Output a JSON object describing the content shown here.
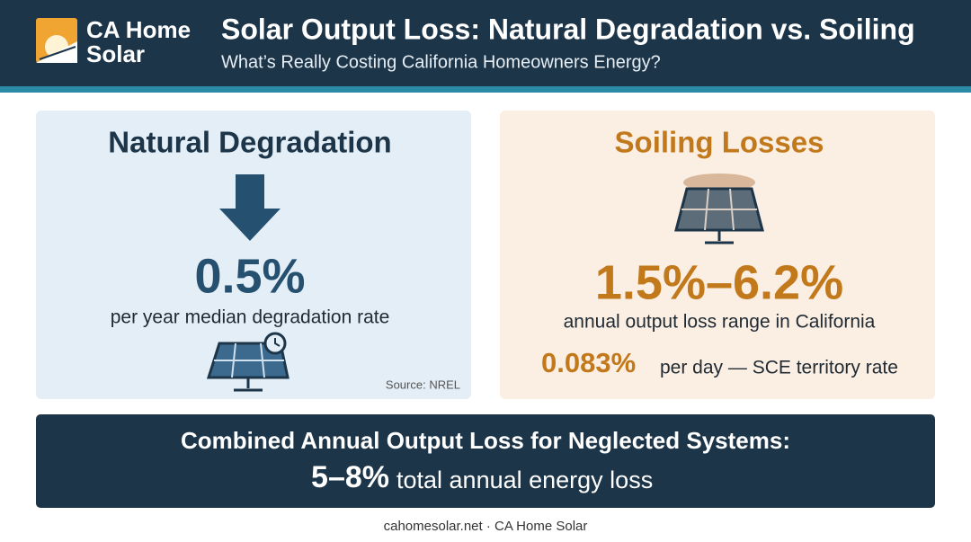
{
  "header": {
    "brand": [
      "CA Home",
      "Solar"
    ],
    "title": "Solar Output Loss: Natural Degradation vs. Soiling",
    "subtitle": "What’s Really Costing California Homeowners Energy?"
  },
  "degradation": {
    "title": "Natural Degradation",
    "stat": "0.5%",
    "description": "per year median degradation rate",
    "source": "Source: NREL"
  },
  "soiling": {
    "title": "Soiling Losses",
    "stat": "1.5%–6.2%",
    "description": "annual output loss range in California",
    "daily_stat": "0.083%",
    "daily_description": "per day — SCE territory rate"
  },
  "combined": {
    "title": "Combined Annual Output Loss for Neglected Systems:",
    "stat": "5–8%",
    "description": "total annual energy loss"
  },
  "footer": "cahomesolar.net · CA Home Solar"
}
